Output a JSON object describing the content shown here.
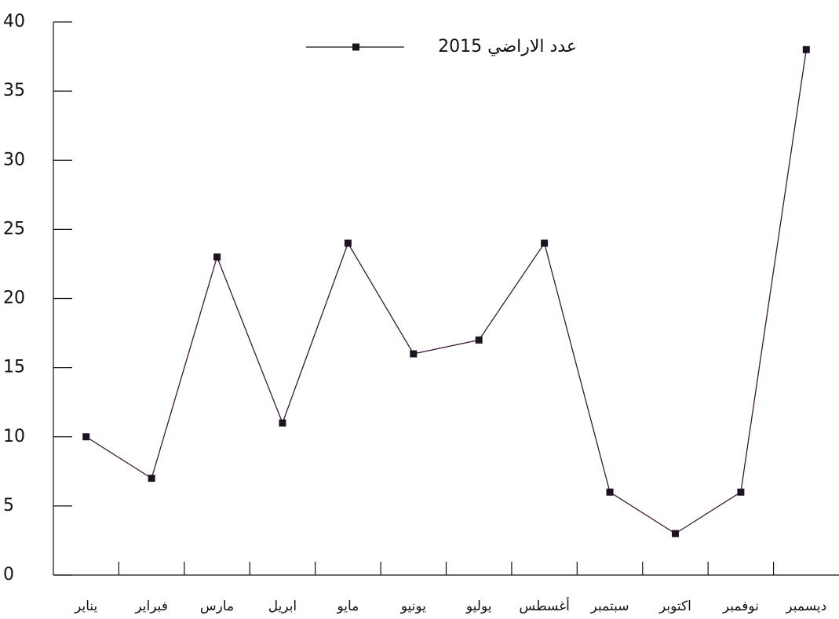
{
  "chart_data": {
    "type": "line",
    "categories": [
      "يناير",
      "فبراير",
      "مارس",
      "ابريل",
      "مايو",
      "يونيو",
      "يوليو",
      "أغسطس",
      "سبتمبر",
      "اكتوبر",
      "نوفمبر",
      "ديسمبر"
    ],
    "series": [
      {
        "name": "عدد الاراضي 2015",
        "color": "#3b1838",
        "values": [
          10,
          7,
          23,
          11,
          24,
          16,
          17,
          24,
          6,
          3,
          6,
          38
        ]
      }
    ],
    "ylim": [
      0,
      40
    ],
    "yticks": [
      0,
      5,
      10,
      15,
      20,
      25,
      30,
      35,
      40
    ],
    "legend": "top"
  }
}
